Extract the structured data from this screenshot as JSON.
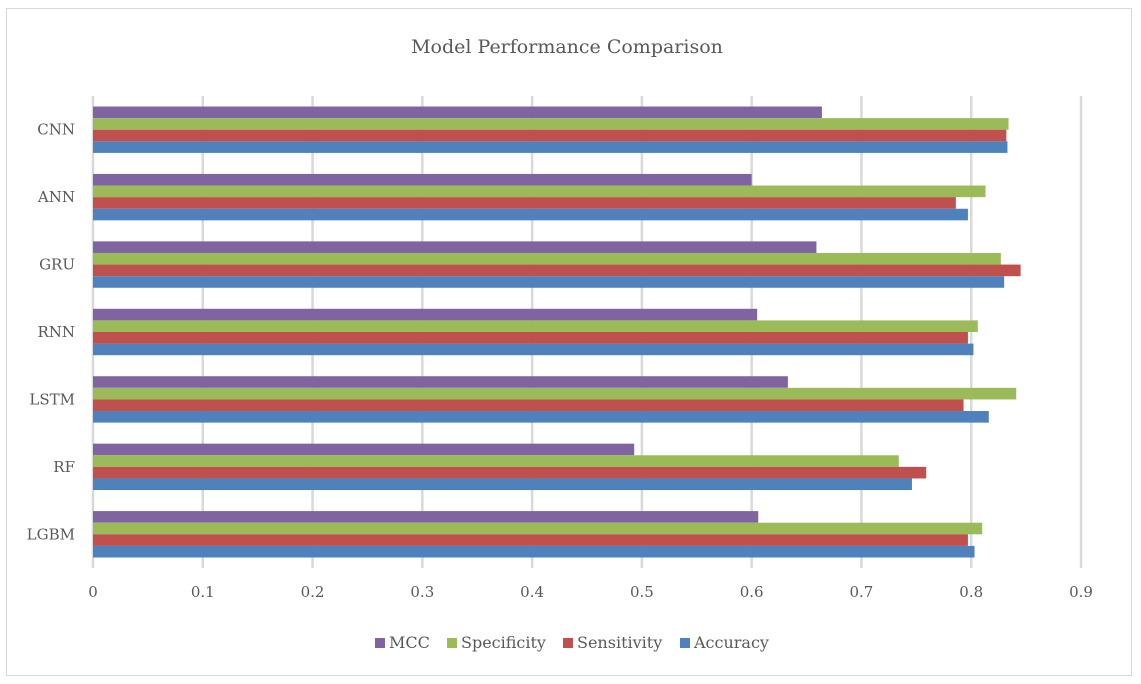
{
  "chart_data": {
    "type": "bar",
    "orientation": "horizontal",
    "title": "Model Performance Comparison",
    "xlabel": "",
    "ylabel": "",
    "xlim": [
      0,
      0.9
    ],
    "x_ticks": [
      "0",
      "0.1",
      "0.2",
      "0.3",
      "0.4",
      "0.5",
      "0.6",
      "0.7",
      "0.8",
      "0.9"
    ],
    "grid": "vertical",
    "legend_position": "bottom",
    "categories": [
      "CNN",
      "ANN",
      "GRU",
      "RNN",
      "LSTM",
      "RF",
      "LGBM"
    ],
    "series": [
      {
        "name": "MCC",
        "color": "#8064a2",
        "values": [
          0.664,
          0.6,
          0.659,
          0.605,
          0.633,
          0.493,
          0.606
        ]
      },
      {
        "name": "Specificity",
        "color": "#9bbb59",
        "values": [
          0.834,
          0.813,
          0.827,
          0.806,
          0.841,
          0.734,
          0.81
        ]
      },
      {
        "name": "Sensitivity",
        "color": "#c0504d",
        "values": [
          0.832,
          0.786,
          0.845,
          0.797,
          0.793,
          0.759,
          0.797
        ]
      },
      {
        "name": "Accuracy",
        "color": "#4f81bd",
        "values": [
          0.833,
          0.797,
          0.83,
          0.802,
          0.816,
          0.746,
          0.803
        ]
      }
    ],
    "legend_order": [
      "MCC",
      "Specificity",
      "Sensitivity",
      "Accuracy"
    ]
  }
}
